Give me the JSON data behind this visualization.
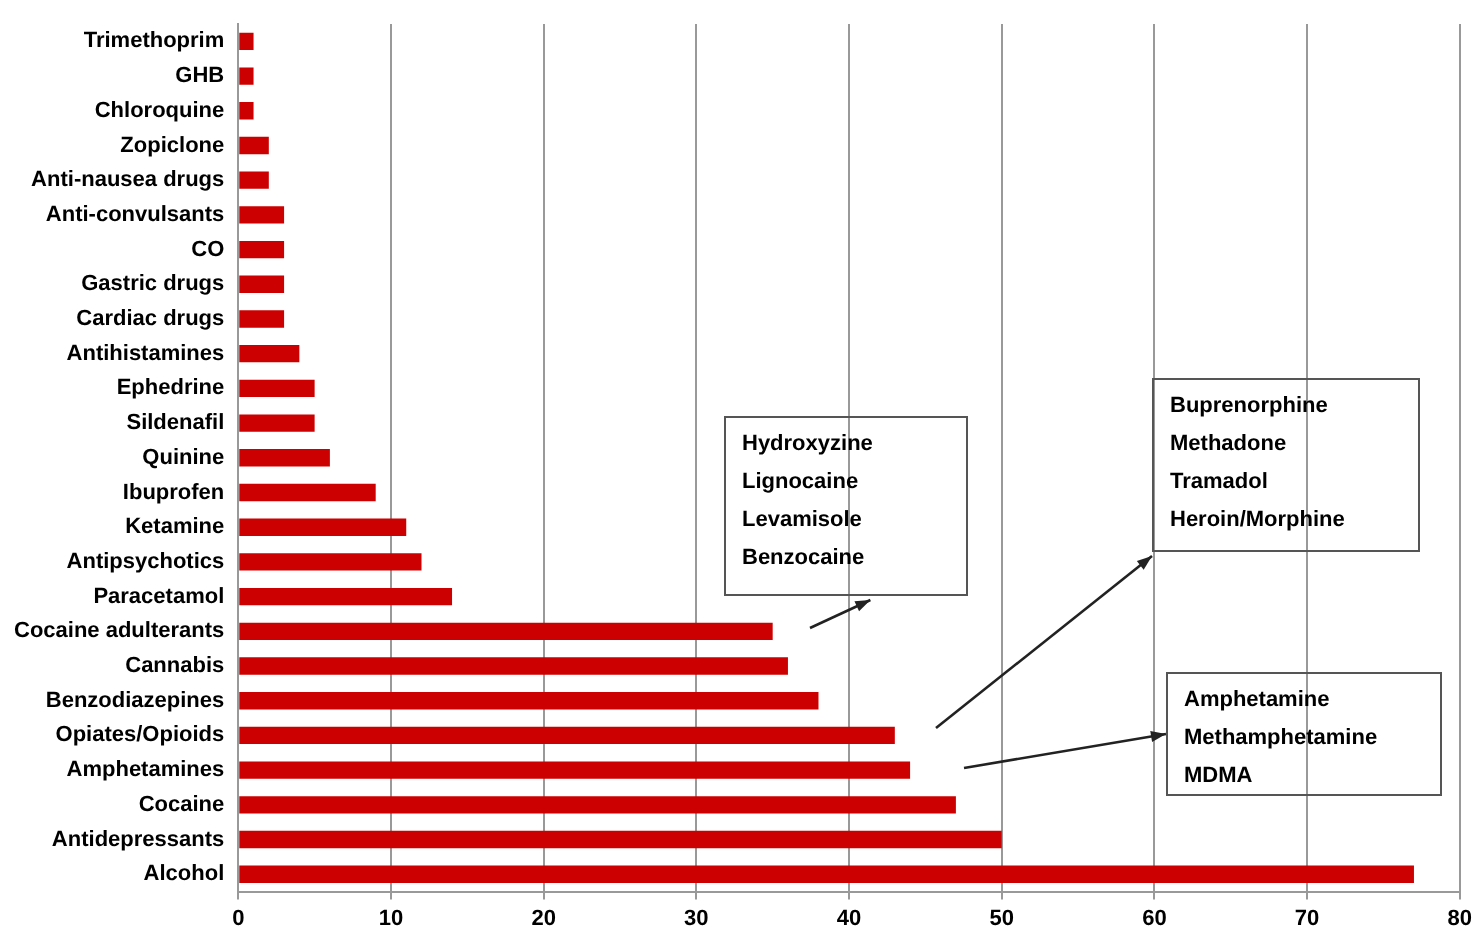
{
  "chart_data": {
    "type": "bar",
    "orientation": "horizontal",
    "categories": [
      "Trimethoprim",
      "GHB",
      "Chloroquine",
      "Zopiclone",
      "Anti-nausea drugs",
      "Anti-convulsants",
      "CO",
      "Gastric drugs",
      "Cardiac drugs",
      "Antihistamines",
      "Ephedrine",
      "Sildenafil",
      "Quinine",
      "Ibuprofen",
      "Ketamine",
      "Antipsychotics",
      "Paracetamol",
      "Cocaine adulterants",
      "Cannabis",
      "Benzodiazepines",
      "Opiates/Opioids",
      "Amphetamines",
      "Cocaine",
      "Antidepressants",
      "Alcohol"
    ],
    "values": [
      1,
      1,
      1,
      2,
      2,
      3,
      3,
      3,
      3,
      4,
      5,
      5,
      6,
      9,
      11,
      12,
      14,
      35,
      36,
      38,
      43,
      44,
      47,
      50,
      77
    ],
    "color": "#cc0000",
    "xlim": [
      0,
      80
    ],
    "xticks": [
      0,
      10,
      20,
      30,
      40,
      50,
      60,
      70,
      80
    ],
    "grid": "x",
    "legend": false,
    "annotations": [
      "Hydroxyzine\nLignocaine\nLevamisole\nBenzocaine",
      "Buprenorphine\nMethadone\nTramadol\nHeroin/Morphine",
      "Amphetamine\nMethamphetamine\nMDMA"
    ]
  }
}
